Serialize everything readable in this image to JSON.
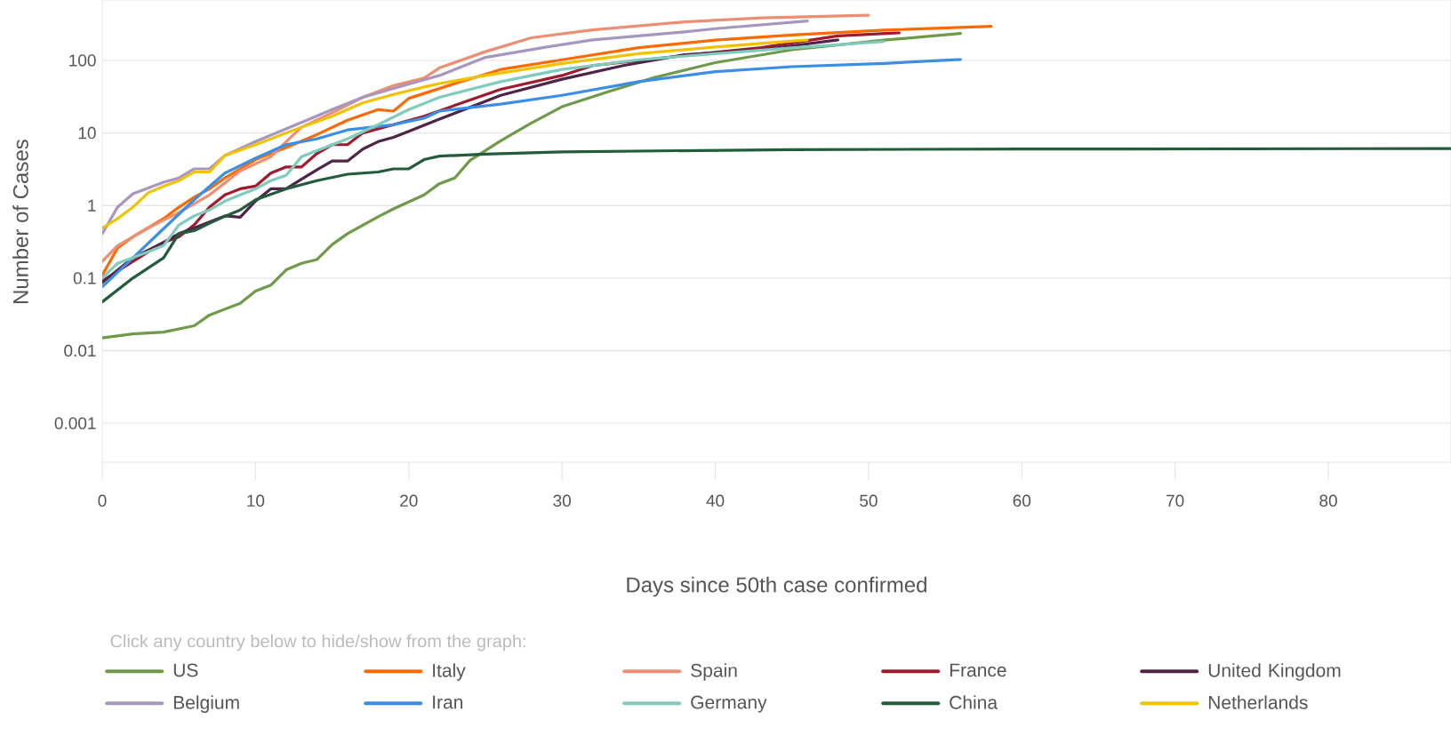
{
  "chart_data": {
    "type": "line",
    "xlabel": "Days since 50th case confirmed",
    "ylabel": "Number of Cases",
    "annotations": [
      "Click any country below to hide/show from the graph:"
    ],
    "xlim": [
      0,
      88
    ],
    "ylim": [
      0.00029,
      680
    ],
    "xticks": [
      0,
      10,
      20,
      30,
      40,
      50,
      60,
      70,
      80
    ],
    "yticks": [
      0.001,
      0.01,
      0.1,
      1,
      10,
      100
    ],
    "log": "y",
    "grid": "y",
    "legend": "bottom",
    "series": [
      {
        "name": "US",
        "color": "#6e9a4a",
        "x": [
          0,
          2,
          4,
          6,
          7,
          9,
          10,
          11,
          12,
          13,
          14,
          15,
          16,
          18,
          19,
          21,
          22,
          23,
          24,
          26,
          28,
          30,
          33,
          36,
          40,
          45,
          51,
          56
        ],
        "values": [
          0.015,
          0.017,
          0.018,
          0.022,
          0.031,
          0.045,
          0.066,
          0.08,
          0.13,
          0.16,
          0.18,
          0.29,
          0.41,
          0.7,
          0.9,
          1.4,
          2,
          2.4,
          4.2,
          7.8,
          13.7,
          23,
          37,
          58,
          93,
          140,
          190,
          235
        ]
      },
      {
        "name": "Italy",
        "color": "#ff6a00",
        "x": [
          0,
          1,
          2,
          4,
          5,
          6,
          7,
          8,
          10,
          12,
          14,
          16,
          18,
          19,
          20,
          23,
          26,
          30,
          35,
          40,
          45,
          51,
          58
        ],
        "values": [
          0.11,
          0.26,
          0.37,
          0.66,
          0.95,
          1.3,
          1.7,
          2.4,
          4.3,
          6.3,
          9.5,
          15,
          21,
          20,
          30,
          48,
          75,
          102,
          150,
          190,
          224,
          262,
          295
        ]
      },
      {
        "name": "Spain",
        "color": "#ec8f75",
        "x": [
          0,
          1,
          3,
          4,
          5,
          7,
          9,
          11,
          12,
          13,
          15,
          17,
          19,
          21,
          22,
          25,
          28,
          32,
          38,
          43,
          50
        ],
        "values": [
          0.17,
          0.28,
          0.49,
          0.63,
          0.8,
          1.4,
          3,
          4.7,
          7.6,
          12,
          19,
          31,
          45,
          57,
          79,
          132,
          205,
          264,
          340,
          385,
          420
        ]
      },
      {
        "name": "France",
        "color": "#a01a2e",
        "x": [
          0,
          2,
          4,
          5,
          6,
          7,
          8,
          9,
          10,
          11,
          12,
          13,
          14,
          15,
          16,
          17,
          19,
          21,
          23,
          26,
          30,
          32,
          38,
          43,
          48,
          52
        ],
        "values": [
          0.091,
          0.17,
          0.31,
          0.37,
          0.54,
          0.95,
          1.4,
          1.7,
          1.85,
          2.8,
          3.4,
          3.4,
          5.2,
          6.9,
          6.9,
          10,
          13,
          17,
          24,
          40,
          62,
          85,
          117,
          150,
          218,
          240
        ]
      },
      {
        "name": "United Kingdom",
        "color": "#4e2548",
        "x": [
          0,
          2,
          4,
          5,
          6,
          8,
          9,
          10,
          11,
          12,
          13,
          14,
          15,
          16,
          17,
          18,
          19,
          20,
          22,
          26,
          30,
          34,
          38,
          43,
          48
        ],
        "values": [
          0.087,
          0.19,
          0.31,
          0.41,
          0.49,
          0.72,
          0.69,
          1.15,
          1.7,
          1.7,
          2.3,
          3.1,
          4.1,
          4.1,
          6,
          7.6,
          8.7,
          10.5,
          15.5,
          33,
          55,
          85,
          120,
          140,
          192
        ]
      },
      {
        "name": "Belgium",
        "color": "#a796bd",
        "x": [
          0,
          1,
          2,
          4,
          5,
          6,
          7,
          8,
          10,
          13,
          15,
          17,
          19,
          21,
          22,
          25,
          29,
          32,
          38,
          40,
          46
        ],
        "values": [
          0.41,
          0.95,
          1.45,
          2.1,
          2.4,
          3.2,
          3.2,
          4.9,
          7.6,
          14,
          21,
          31,
          41,
          54,
          62,
          110,
          153,
          192,
          247,
          274,
          350
        ]
      },
      {
        "name": "Iran",
        "color": "#3a8ee6",
        "x": [
          0,
          2,
          4,
          6,
          8,
          10,
          12,
          14,
          16,
          19,
          21,
          22,
          26,
          30,
          35,
          40,
          45,
          51,
          56
        ],
        "values": [
          0.076,
          0.19,
          0.48,
          1.2,
          2.8,
          4.5,
          6.9,
          8.3,
          11,
          13,
          16,
          20,
          25,
          33,
          51,
          70,
          82,
          91,
          103
        ]
      },
      {
        "name": "Germany",
        "color": "#7fcbbd",
        "x": [
          0,
          1,
          3,
          4,
          5,
          6,
          7,
          8,
          9,
          10,
          11,
          12,
          13,
          14,
          16,
          18,
          20,
          22,
          26,
          30,
          35,
          40,
          45,
          51
        ],
        "values": [
          0.1,
          0.16,
          0.23,
          0.28,
          0.54,
          0.72,
          0.87,
          1.15,
          1.4,
          1.7,
          2.2,
          2.6,
          4.7,
          5.7,
          8.3,
          13,
          21,
          31,
          51,
          75,
          102,
          124,
          149,
          182
        ]
      },
      {
        "name": "China",
        "color": "#235c3a",
        "x": [
          0,
          2,
          4,
          5,
          6,
          7,
          8,
          9,
          10,
          12,
          14,
          16,
          18,
          19,
          20,
          21,
          22,
          25,
          30,
          45,
          60,
          88
        ],
        "values": [
          0.047,
          0.1,
          0.19,
          0.41,
          0.45,
          0.57,
          0.71,
          0.87,
          1.2,
          1.7,
          2.2,
          2.7,
          2.9,
          3.2,
          3.2,
          4.3,
          4.8,
          5.1,
          5.5,
          5.9,
          6,
          6.1
        ]
      },
      {
        "name": "Netherlands",
        "color": "#f2c200",
        "x": [
          0,
          1,
          2,
          3,
          4,
          5,
          6,
          7,
          8,
          10,
          13,
          15,
          17,
          19,
          21,
          22,
          25,
          30,
          35,
          40,
          46
        ],
        "values": [
          0.49,
          0.66,
          0.95,
          1.5,
          1.85,
          2.2,
          2.9,
          2.9,
          4.9,
          6.9,
          12,
          17,
          26,
          34,
          43,
          48,
          62,
          91,
          124,
          153,
          192
        ]
      }
    ]
  }
}
